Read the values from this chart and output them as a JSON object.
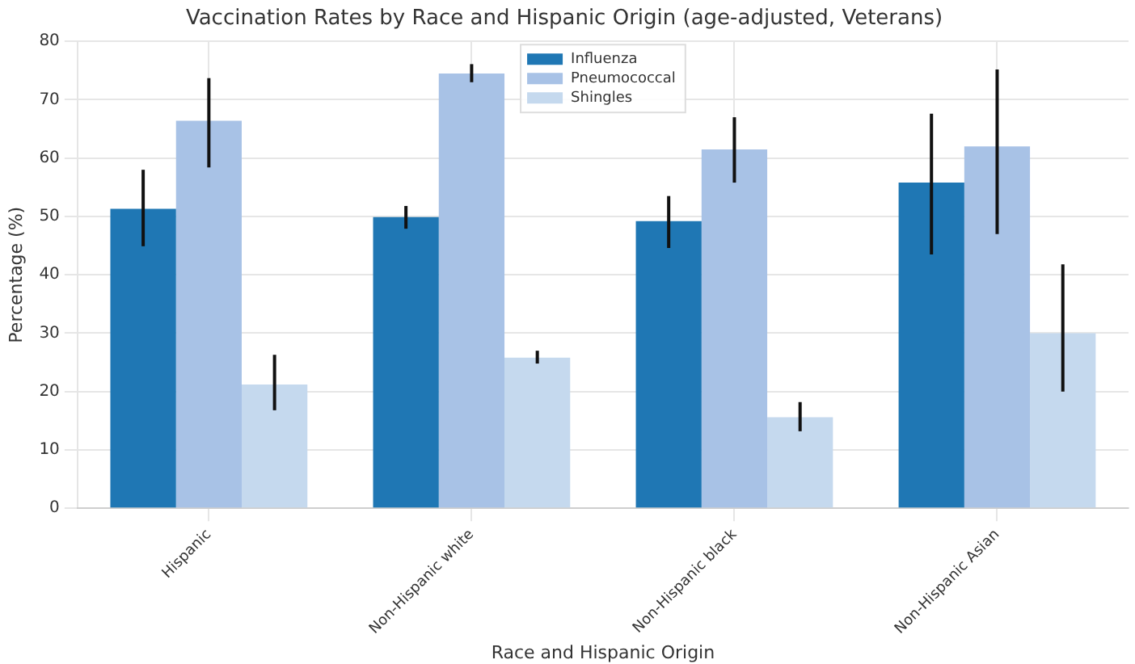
{
  "chart_data": {
    "type": "bar",
    "title": "Vaccination Rates by Race and Hispanic Origin (age-adjusted, Veterans)",
    "xlabel": "Race and Hispanic Origin",
    "ylabel": "Percentage (%)",
    "categories": [
      "Hispanic",
      "Non-Hispanic white",
      "Non-Hispanic black",
      "Non-Hispanic Asian"
    ],
    "series": [
      {
        "name": "Influenza",
        "color": "#1f77b4",
        "values": [
          51.3,
          49.9,
          49.2,
          55.8
        ],
        "errors": [
          [
            44.9,
            58
          ],
          [
            47.9,
            51.8
          ],
          [
            44.6,
            53.5
          ],
          [
            43.5,
            67.6
          ]
        ]
      },
      {
        "name": "Pneumococcal",
        "color": "#a8c2e6",
        "values": [
          66.4,
          74.5,
          61.5,
          62
        ],
        "errors": [
          [
            58.4,
            73.7
          ],
          [
            73,
            76.1
          ],
          [
            55.8,
            67
          ],
          [
            47,
            75.2
          ]
        ]
      },
      {
        "name": "Shingles",
        "color": "#c5d9ee",
        "values": [
          21.2,
          25.8,
          15.6,
          30
        ],
        "errors": [
          [
            16.8,
            26.3
          ],
          [
            24.8,
            27
          ],
          [
            13.2,
            18.2
          ],
          [
            20,
            41.8
          ]
        ]
      }
    ],
    "ylim": [
      0,
      80
    ],
    "yticks": [
      0,
      10,
      20,
      30,
      40,
      50,
      60,
      70,
      80
    ],
    "grid": true,
    "legend": "top"
  }
}
